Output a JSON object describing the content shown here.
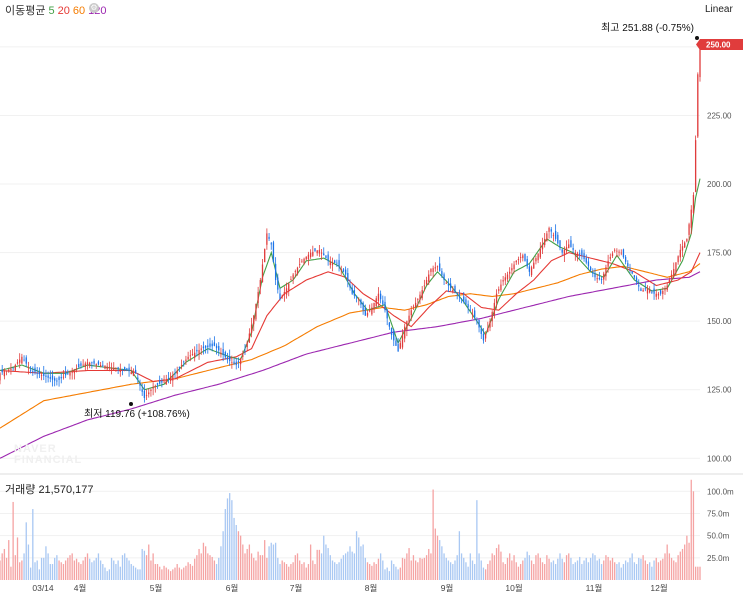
{
  "legend": {
    "title": "이동평균",
    "items": [
      {
        "label": "5",
        "color": "#43a047"
      },
      {
        "label": "20",
        "color": "#e53935"
      },
      {
        "label": "60",
        "color": "#f57c00"
      },
      {
        "label": "120",
        "color": "#9c27b0"
      }
    ],
    "settings_icon": "gear-icon"
  },
  "scale_button": "Linear",
  "volume": {
    "label": "거래량",
    "value": "21,570,177"
  },
  "watermark": [
    "NAVER",
    "FINANCIAL"
  ],
  "annotations": {
    "high": "최고 251.88 (-0.75%)",
    "low": "최저 119.76 (+108.76%)"
  },
  "current_price_badge": "250.00",
  "colors": {
    "up": "#e03c3c",
    "down": "#1a73e8",
    "grid": "#f1f1f1",
    "badge": "#e03c3c"
  },
  "chart_data": {
    "type": "candlestick",
    "price_axis": {
      "range": [
        95,
        262
      ],
      "ticks": [
        "100.00",
        "125.00",
        "150.00",
        "175.00",
        "200.00",
        "225.00",
        "250.00"
      ]
    },
    "volume_axis": {
      "range": [
        0,
        115
      ],
      "unit": "m",
      "ticks": [
        "25.0m",
        "50.0m",
        "75.0m",
        "100.0m"
      ]
    },
    "x_labels": [
      "03/14",
      "4월",
      "5월",
      "6월",
      "7월",
      "8월",
      "9월",
      "10월",
      "11월",
      "12월"
    ],
    "series": [
      {
        "name": "price",
        "key_points": [
          [
            0,
            131
          ],
          [
            6,
            133
          ],
          [
            10,
            137
          ],
          [
            14,
            132
          ],
          [
            20,
            130
          ],
          [
            26,
            128
          ],
          [
            33,
            132
          ],
          [
            40,
            135
          ],
          [
            46,
            134
          ],
          [
            52,
            133
          ],
          [
            58,
            132
          ],
          [
            62,
            131
          ],
          [
            66,
            122
          ],
          [
            70,
            126
          ],
          [
            75,
            128
          ],
          [
            80,
            131
          ],
          [
            86,
            137
          ],
          [
            92,
            140
          ],
          [
            98,
            141
          ],
          [
            104,
            136
          ],
          [
            108,
            134
          ],
          [
            112,
            139
          ],
          [
            116,
            152
          ],
          [
            119,
            165
          ],
          [
            122,
            182
          ],
          [
            124,
            178
          ],
          [
            126,
            165
          ],
          [
            128,
            158
          ],
          [
            131,
            162
          ],
          [
            134,
            167
          ],
          [
            138,
            172
          ],
          [
            142,
            175
          ],
          [
            146,
            176
          ],
          [
            150,
            172
          ],
          [
            154,
            171
          ],
          [
            158,
            167
          ],
          [
            161,
            160
          ],
          [
            164,
            158
          ],
          [
            167,
            152
          ],
          [
            170,
            155
          ],
          [
            173,
            160
          ],
          [
            176,
            154
          ],
          [
            179,
            145
          ],
          [
            182,
            139
          ],
          [
            185,
            148
          ],
          [
            188,
            154
          ],
          [
            191,
            158
          ],
          [
            194,
            163
          ],
          [
            197,
            169
          ],
          [
            200,
            170
          ],
          [
            203,
            165
          ],
          [
            206,
            162
          ],
          [
            209,
            160
          ],
          [
            212,
            157
          ],
          [
            215,
            154
          ],
          [
            218,
            150
          ],
          [
            221,
            143
          ],
          [
            224,
            150
          ],
          [
            227,
            160
          ],
          [
            230,
            165
          ],
          [
            233,
            168
          ],
          [
            236,
            172
          ],
          [
            239,
            174
          ],
          [
            242,
            168
          ],
          [
            245,
            173
          ],
          [
            248,
            178
          ],
          [
            251,
            184
          ],
          [
            254,
            180
          ],
          [
            257,
            175
          ],
          [
            260,
            178
          ],
          [
            263,
            175
          ],
          [
            266,
            174
          ],
          [
            269,
            170
          ],
          [
            272,
            166
          ],
          [
            275,
            165
          ],
          [
            278,
            172
          ],
          [
            281,
            176
          ],
          [
            284,
            175
          ],
          [
            287,
            170
          ],
          [
            290,
            166
          ],
          [
            293,
            161
          ],
          [
            296,
            162
          ],
          [
            299,
            160
          ],
          [
            302,
            160
          ],
          [
            305,
            163
          ],
          [
            308,
            169
          ],
          [
            311,
            176
          ],
          [
            314,
            180
          ],
          [
            317,
            196
          ],
          [
            318,
            216
          ],
          [
            319,
            240
          ],
          [
            320,
            250
          ]
        ]
      },
      {
        "name": "5",
        "key_points": [
          [
            0,
            132
          ],
          [
            10,
            134
          ],
          [
            20,
            131
          ],
          [
            30,
            131
          ],
          [
            40,
            134
          ],
          [
            50,
            133
          ],
          [
            60,
            132
          ],
          [
            66,
            125
          ],
          [
            75,
            127
          ],
          [
            85,
            135
          ],
          [
            95,
            140
          ],
          [
            105,
            137
          ],
          [
            110,
            136
          ],
          [
            115,
            146
          ],
          [
            120,
            166
          ],
          [
            124,
            175
          ],
          [
            128,
            162
          ],
          [
            134,
            165
          ],
          [
            140,
            172
          ],
          [
            148,
            173
          ],
          [
            155,
            170
          ],
          [
            162,
            160
          ],
          [
            168,
            154
          ],
          [
            176,
            156
          ],
          [
            182,
            142
          ],
          [
            188,
            151
          ],
          [
            195,
            163
          ],
          [
            200,
            168
          ],
          [
            206,
            163
          ],
          [
            212,
            157
          ],
          [
            218,
            150
          ],
          [
            222,
            145
          ],
          [
            228,
            158
          ],
          [
            235,
            168
          ],
          [
            242,
            171
          ],
          [
            250,
            180
          ],
          [
            256,
            177
          ],
          [
            262,
            175
          ],
          [
            270,
            168
          ],
          [
            276,
            166
          ],
          [
            282,
            174
          ],
          [
            290,
            165
          ],
          [
            298,
            161
          ],
          [
            305,
            162
          ],
          [
            312,
            172
          ],
          [
            316,
            182
          ],
          [
            318,
            195
          ],
          [
            320,
            202
          ]
        ]
      },
      {
        "name": "20",
        "key_points": [
          [
            0,
            132
          ],
          [
            20,
            131
          ],
          [
            40,
            132
          ],
          [
            60,
            132
          ],
          [
            70,
            128
          ],
          [
            80,
            129
          ],
          [
            95,
            135
          ],
          [
            108,
            137
          ],
          [
            115,
            140
          ],
          [
            122,
            152
          ],
          [
            130,
            160
          ],
          [
            140,
            165
          ],
          [
            150,
            168
          ],
          [
            158,
            166
          ],
          [
            166,
            160
          ],
          [
            172,
            157
          ],
          [
            180,
            152
          ],
          [
            188,
            148
          ],
          [
            196,
            155
          ],
          [
            204,
            161
          ],
          [
            212,
            160
          ],
          [
            220,
            155
          ],
          [
            228,
            154
          ],
          [
            236,
            160
          ],
          [
            244,
            165
          ],
          [
            252,
            172
          ],
          [
            260,
            175
          ],
          [
            270,
            173
          ],
          [
            280,
            171
          ],
          [
            290,
            168
          ],
          [
            300,
            163
          ],
          [
            310,
            165
          ],
          [
            316,
            168
          ],
          [
            320,
            175
          ]
        ]
      },
      {
        "name": "60",
        "key_points": [
          [
            0,
            111
          ],
          [
            20,
            121
          ],
          [
            40,
            124
          ],
          [
            60,
            127
          ],
          [
            80,
            129
          ],
          [
            100,
            133
          ],
          [
            115,
            136
          ],
          [
            130,
            141
          ],
          [
            145,
            148
          ],
          [
            160,
            153
          ],
          [
            175,
            155
          ],
          [
            185,
            154
          ],
          [
            195,
            156
          ],
          [
            205,
            159
          ],
          [
            215,
            160
          ],
          [
            225,
            159
          ],
          [
            235,
            160
          ],
          [
            245,
            162
          ],
          [
            255,
            164
          ],
          [
            265,
            167
          ],
          [
            275,
            169
          ],
          [
            285,
            170
          ],
          [
            295,
            168
          ],
          [
            305,
            166
          ],
          [
            315,
            168
          ],
          [
            320,
            171
          ]
        ]
      },
      {
        "name": "120",
        "key_points": [
          [
            0,
            100
          ],
          [
            20,
            108
          ],
          [
            40,
            114
          ],
          [
            60,
            118
          ],
          [
            80,
            123
          ],
          [
            100,
            127
          ],
          [
            120,
            132
          ],
          [
            140,
            138
          ],
          [
            160,
            142
          ],
          [
            180,
            146
          ],
          [
            200,
            148
          ],
          [
            220,
            151
          ],
          [
            240,
            155
          ],
          [
            260,
            159
          ],
          [
            280,
            162
          ],
          [
            300,
            165
          ],
          [
            315,
            166
          ],
          [
            320,
            168
          ]
        ]
      },
      {
        "name": "volume",
        "values_m": [
          22,
          30,
          35,
          25,
          45,
          15,
          88,
          28,
          48,
          20,
          22,
          30,
          65,
          40,
          14,
          80,
          20,
          22,
          12,
          25,
          25,
          38,
          30,
          18,
          18,
          25,
          28,
          22,
          20,
          18,
          22,
          25,
          28,
          30,
          22,
          24,
          20,
          18,
          22,
          26,
          30,
          24,
          20,
          22,
          25,
          30,
          22,
          18,
          14,
          10,
          12,
          25,
          22,
          18,
          22,
          15,
          28,
          30,
          25,
          22,
          18,
          16,
          14,
          12,
          12,
          35,
          33,
          28,
          40,
          22,
          30,
          18,
          18,
          15,
          12,
          16,
          14,
          12,
          10,
          12,
          14,
          18,
          14,
          12,
          14,
          16,
          20,
          18,
          16,
          24,
          28,
          35,
          30,
          42,
          38,
          30,
          28,
          26,
          22,
          18,
          25,
          38,
          55,
          80,
          92,
          98,
          90,
          70,
          62,
          55,
          50,
          40,
          30,
          35,
          40,
          30,
          25,
          22,
          32,
          28,
          28,
          45,
          25,
          38,
          42,
          40,
          42,
          25,
          18,
          22,
          20,
          18,
          15,
          18,
          20,
          28,
          30,
          22,
          18,
          20,
          14,
          18,
          40,
          22,
          18,
          34,
          34,
          30,
          50,
          40,
          36,
          28,
          22,
          20,
          18,
          20,
          24,
          28,
          30,
          32,
          38,
          32,
          30,
          55,
          48,
          38,
          40,
          25,
          20,
          18,
          16,
          20,
          18,
          24,
          30,
          22,
          12,
          14,
          10,
          22,
          18,
          15,
          12,
          14,
          25,
          24,
          30,
          36,
          22,
          28,
          22,
          20,
          25,
          24,
          25,
          28,
          35,
          30,
          102,
          58,
          50,
          45,
          38,
          30,
          25,
          22,
          20,
          18,
          22,
          28,
          55,
          30,
          25,
          20,
          15,
          30,
          22,
          18,
          90,
          30,
          22,
          14,
          12,
          18,
          22,
          30,
          28,
          36,
          40,
          32,
          20,
          18,
          25,
          30,
          22,
          28,
          20,
          15,
          18,
          22,
          25,
          32,
          28,
          22,
          18,
          28,
          30,
          25,
          20,
          18,
          28,
          24,
          20,
          22,
          18,
          24,
          30,
          24,
          20,
          28,
          30,
          25,
          18,
          20,
          22,
          26,
          18,
          22,
          25,
          20,
          25,
          30,
          28,
          22,
          24,
          18,
          22,
          28,
          26,
          22,
          25,
          20,
          18,
          20,
          14,
          18,
          22,
          20,
          25,
          30,
          20,
          18,
          25,
          24,
          28,
          22,
          18,
          20,
          15,
          22,
          25,
          20,
          22,
          24,
          30,
          40,
          30,
          25,
          22,
          20,
          28,
          32,
          35,
          40,
          50,
          42,
          113,
          100
        ]
      }
    ],
    "extremes": {
      "high": 251.88,
      "low": 119.76
    }
  }
}
